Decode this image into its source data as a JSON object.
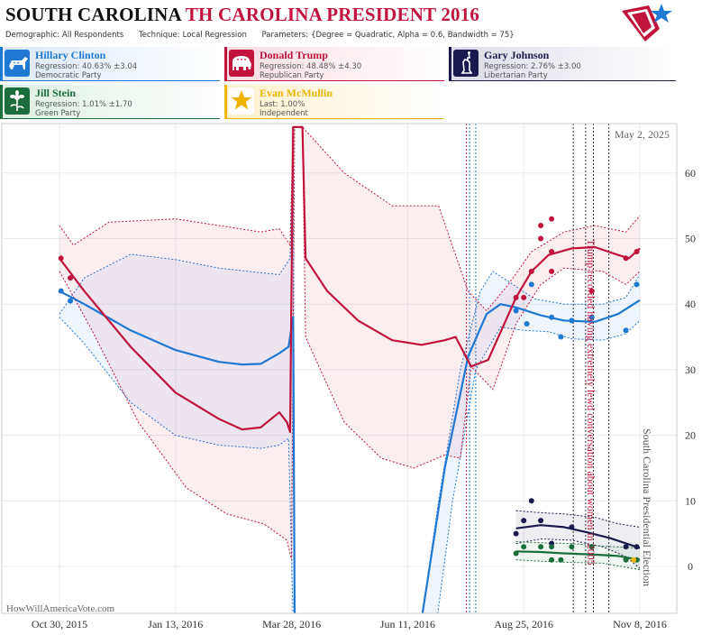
{
  "header": {
    "title_state": "SOUTH CAROLINA",
    "title_race": "TH CAROLINA PRESIDENT 2016",
    "demographic_label": "Demographic:",
    "demographic_value": "All Respondents",
    "technique_label": "Technique:",
    "technique_value": "Local Regression",
    "parameters_label": "Parameters:",
    "parameters_value": "{Degree = Quadratic, Alpha = 0.6, Bandwidth = 75}"
  },
  "candidates": [
    {
      "name": "Hillary Clinton",
      "line1": "Regression: 40.63% ±3.04",
      "line2": "Democratic Party",
      "color": "#1f78d1",
      "icon": "donkey-icon"
    },
    {
      "name": "Donald Trump",
      "line1": "Regression: 48.48% ±4.30",
      "line2": "Republican Party",
      "color": "#c0143c",
      "icon": "elephant-icon"
    },
    {
      "name": "Gary Johnson",
      "line1": "Regression: 2.76% ±3.00",
      "line2": "Libertarian Party",
      "color": "#1a1a4e",
      "icon": "statue-of-liberty-icon"
    },
    {
      "name": "Jill Stein",
      "line1": "Regression: 1.01% ±1.70",
      "line2": "Green Party",
      "color": "#1b6e3b",
      "icon": "flower-icon"
    },
    {
      "name": "Evan McMullin",
      "line1": "Last: 1.00%",
      "line2": "Independent",
      "color": "#f0b400",
      "icon": "star-icon"
    }
  ],
  "chart_data": {
    "type": "line",
    "date_label": "May 2, 2025",
    "watermark": "HowWillAmericaVote.com",
    "x_ticks": [
      "Oct 30, 2015",
      "Jan 13, 2016",
      "Mar 28, 2016",
      "Jun 11, 2016",
      "Aug 25, 2016",
      "Nov 8, 2016"
    ],
    "x_range": [
      "2015-10-30",
      "2016-11-08"
    ],
    "y_ticks": [
      0,
      10,
      20,
      30,
      40,
      50,
      60
    ],
    "ylim": [
      -8,
      67
    ],
    "grid": true,
    "annotations": [
      {
        "text": "Trump recorded having extremely lewd conversation about women in 2005",
        "date": "2016-10-07",
        "color": "#c0143c"
      },
      {
        "text": "South Carolina Presidential Election",
        "date": "2016-11-08",
        "color": "#555555"
      }
    ],
    "series": [
      {
        "name": "Hillary Clinton",
        "color": "#1f78d1",
        "fit": [
          [
            "2015-10-30",
            42
          ],
          [
            "2015-11-15",
            40
          ],
          [
            "2015-12-15",
            36
          ],
          [
            "2016-01-13",
            33
          ],
          [
            "2016-02-10",
            31.2
          ],
          [
            "2016-02-25",
            30.8
          ],
          [
            "2016-03-08",
            30.9
          ],
          [
            "2016-03-20",
            32.5
          ],
          [
            "2016-03-26",
            33.5
          ],
          [
            "2016-03-29",
            38
          ],
          [
            "2016-03-30",
            -8
          ],
          [
            "2016-06-20",
            -8
          ],
          [
            "2016-07-05",
            15
          ],
          [
            "2016-07-20",
            32
          ],
          [
            "2016-08-01",
            38.5
          ],
          [
            "2016-08-10",
            40
          ],
          [
            "2016-08-20",
            39.5
          ],
          [
            "2016-09-05",
            38.3
          ],
          [
            "2016-09-20",
            37.5
          ],
          [
            "2016-10-10",
            37.3
          ],
          [
            "2016-10-25",
            38.5
          ],
          [
            "2016-11-08",
            40.6
          ]
        ],
        "band_upper": [
          [
            "2015-10-30",
            38.5
          ],
          [
            "2015-11-15",
            44
          ],
          [
            "2015-12-15",
            47.6
          ],
          [
            "2016-01-13",
            46.8
          ],
          [
            "2016-02-10",
            45.5
          ],
          [
            "2016-03-08",
            44.8
          ],
          [
            "2016-03-20",
            44.5
          ],
          [
            "2016-03-27",
            47
          ],
          [
            "2016-03-29",
            65
          ],
          [
            "2016-03-30",
            -8
          ],
          [
            "2016-06-20",
            -8
          ],
          [
            "2016-07-01",
            10
          ],
          [
            "2016-07-15",
            30
          ],
          [
            "2016-07-28",
            42
          ],
          [
            "2016-08-05",
            45
          ],
          [
            "2016-08-15",
            43.5
          ],
          [
            "2016-09-01",
            40.8
          ],
          [
            "2016-09-20",
            40
          ],
          [
            "2016-10-15",
            40
          ],
          [
            "2016-10-30",
            41
          ],
          [
            "2016-11-08",
            44.5
          ]
        ],
        "band_lower": [
          [
            "2015-10-30",
            38
          ],
          [
            "2015-11-15",
            34
          ],
          [
            "2015-12-15",
            25
          ],
          [
            "2016-01-13",
            20
          ],
          [
            "2016-02-10",
            18.5
          ],
          [
            "2016-03-08",
            18
          ],
          [
            "2016-03-20",
            18.5
          ],
          [
            "2016-03-26",
            19.5
          ],
          [
            "2016-03-29",
            -8
          ],
          [
            "2016-06-30",
            -8
          ],
          [
            "2016-07-10",
            10
          ],
          [
            "2016-07-25",
            30
          ],
          [
            "2016-08-10",
            36.5
          ],
          [
            "2016-08-25",
            36
          ],
          [
            "2016-09-10",
            35.8
          ],
          [
            "2016-09-25",
            34.7
          ],
          [
            "2016-10-15",
            34.5
          ],
          [
            "2016-10-30",
            35.5
          ],
          [
            "2016-11-08",
            37.5
          ]
        ],
        "points": [
          [
            "2015-10-31",
            42
          ],
          [
            "2015-11-06",
            40.5
          ],
          [
            "2016-08-20",
            39
          ],
          [
            "2016-08-27",
            37
          ],
          [
            "2016-08-30",
            43
          ],
          [
            "2016-09-12",
            38
          ],
          [
            "2016-09-18",
            35
          ],
          [
            "2016-09-25",
            37.5
          ],
          [
            "2016-10-08",
            38
          ],
          [
            "2016-10-30",
            36
          ],
          [
            "2016-11-06",
            43
          ]
        ]
      },
      {
        "name": "Donald Trump",
        "color": "#c0143c",
        "fit": [
          [
            "2015-10-30",
            47
          ],
          [
            "2015-11-15",
            42
          ],
          [
            "2015-12-15",
            33.5
          ],
          [
            "2016-01-13",
            26.5
          ],
          [
            "2016-02-10",
            22.5
          ],
          [
            "2016-02-25",
            20.9
          ],
          [
            "2016-03-08",
            21.2
          ],
          [
            "2016-03-20",
            23.5
          ],
          [
            "2016-03-25",
            22
          ],
          [
            "2016-03-27",
            20.5
          ],
          [
            "2016-03-29",
            67
          ],
          [
            "2016-04-04",
            67
          ],
          [
            "2016-04-06",
            47
          ],
          [
            "2016-04-20",
            42
          ],
          [
            "2016-05-10",
            37.5
          ],
          [
            "2016-06-01",
            34.5
          ],
          [
            "2016-06-20",
            33.8
          ],
          [
            "2016-07-05",
            34.5
          ],
          [
            "2016-07-12",
            35
          ],
          [
            "2016-07-22",
            30.5
          ],
          [
            "2016-08-02",
            31.5
          ],
          [
            "2016-08-20",
            41
          ],
          [
            "2016-08-30",
            45
          ],
          [
            "2016-09-10",
            47.5
          ],
          [
            "2016-09-25",
            48.5
          ],
          [
            "2016-10-10",
            48.7
          ],
          [
            "2016-10-25",
            47.5
          ],
          [
            "2016-11-01",
            47
          ],
          [
            "2016-11-08",
            48.5
          ]
        ],
        "band_upper": [
          [
            "2015-10-30",
            52
          ],
          [
            "2015-11-08",
            49
          ],
          [
            "2015-12-01",
            52.5
          ],
          [
            "2016-01-13",
            53
          ],
          [
            "2016-02-10",
            52
          ],
          [
            "2016-03-08",
            51
          ],
          [
            "2016-03-20",
            51.5
          ],
          [
            "2016-03-27",
            49
          ],
          [
            "2016-03-29",
            67
          ],
          [
            "2016-04-04",
            67
          ],
          [
            "2016-05-01",
            60
          ],
          [
            "2016-06-01",
            55
          ],
          [
            "2016-07-01",
            55
          ],
          [
            "2016-07-20",
            42
          ],
          [
            "2016-08-01",
            39
          ],
          [
            "2016-08-15",
            43
          ],
          [
            "2016-08-30",
            48
          ],
          [
            "2016-09-20",
            51
          ],
          [
            "2016-10-10",
            52
          ],
          [
            "2016-10-30",
            51
          ],
          [
            "2016-11-08",
            53.5
          ]
        ],
        "band_lower": [
          [
            "2015-10-30",
            45
          ],
          [
            "2015-11-20",
            36
          ],
          [
            "2015-12-20",
            22
          ],
          [
            "2016-01-20",
            12
          ],
          [
            "2016-02-15",
            8
          ],
          [
            "2016-03-10",
            6.5
          ],
          [
            "2016-03-25",
            4
          ],
          [
            "2016-03-28",
            1
          ],
          [
            "2016-03-30",
            67
          ],
          [
            "2016-04-04",
            67
          ],
          [
            "2016-04-06",
            35
          ],
          [
            "2016-05-01",
            22
          ],
          [
            "2016-05-25",
            16.5
          ],
          [
            "2016-06-15",
            15
          ],
          [
            "2016-07-05",
            17
          ],
          [
            "2016-07-15",
            16.5
          ],
          [
            "2016-07-22",
            30.5
          ],
          [
            "2016-08-05",
            27
          ],
          [
            "2016-08-20",
            37
          ],
          [
            "2016-09-05",
            43
          ],
          [
            "2016-09-20",
            45.5
          ],
          [
            "2016-10-15",
            45
          ],
          [
            "2016-10-30",
            43
          ],
          [
            "2016-11-08",
            45
          ]
        ],
        "points": [
          [
            "2015-10-31",
            47
          ],
          [
            "2015-11-06",
            44
          ],
          [
            "2016-08-20",
            41
          ],
          [
            "2016-08-25",
            41
          ],
          [
            "2016-08-30",
            45
          ],
          [
            "2016-09-05",
            52
          ],
          [
            "2016-09-05",
            50
          ],
          [
            "2016-09-12",
            48
          ],
          [
            "2016-09-12",
            53
          ],
          [
            "2016-09-12",
            45
          ],
          [
            "2016-10-08",
            42
          ],
          [
            "2016-10-30",
            47
          ],
          [
            "2016-11-06",
            48
          ]
        ]
      },
      {
        "name": "Gary Johnson",
        "color": "#1a1a4e",
        "fit": [
          [
            "2016-08-20",
            5.8
          ],
          [
            "2016-09-05",
            6.3
          ],
          [
            "2016-09-20",
            6
          ],
          [
            "2016-10-05",
            5.2
          ],
          [
            "2016-10-20",
            4.3
          ],
          [
            "2016-11-08",
            2.8
          ]
        ],
        "band_upper": [
          [
            "2016-08-20",
            8.5
          ],
          [
            "2016-09-05",
            8.2
          ],
          [
            "2016-09-20",
            8
          ],
          [
            "2016-10-10",
            7.5
          ],
          [
            "2016-10-25",
            6.5
          ],
          [
            "2016-11-08",
            6
          ]
        ],
        "band_lower": [
          [
            "2016-08-20",
            3.5
          ],
          [
            "2016-09-05",
            4.2
          ],
          [
            "2016-09-25",
            4
          ],
          [
            "2016-10-15",
            3
          ],
          [
            "2016-10-30",
            1.5
          ],
          [
            "2016-11-08",
            -0.3
          ]
        ],
        "points": [
          [
            "2016-08-20",
            5
          ],
          [
            "2016-08-25",
            7
          ],
          [
            "2016-08-30",
            10
          ],
          [
            "2016-09-05",
            7
          ],
          [
            "2016-09-12",
            3.5
          ],
          [
            "2016-09-25",
            6
          ],
          [
            "2016-10-08",
            3
          ],
          [
            "2016-10-30",
            3
          ],
          [
            "2016-11-06",
            3
          ]
        ]
      },
      {
        "name": "Jill Stein",
        "color": "#1b6e3b",
        "fit": [
          [
            "2016-08-20",
            2.3
          ],
          [
            "2016-09-05",
            2.2
          ],
          [
            "2016-09-20",
            2
          ],
          [
            "2016-10-10",
            1.8
          ],
          [
            "2016-10-25",
            1.6
          ],
          [
            "2016-11-08",
            1
          ]
        ],
        "band_upper": [
          [
            "2016-08-20",
            3.8
          ],
          [
            "2016-09-05",
            3.6
          ],
          [
            "2016-09-25",
            3.5
          ],
          [
            "2016-10-15",
            3.1
          ],
          [
            "2016-11-08",
            2.8
          ]
        ],
        "band_lower": [
          [
            "2016-08-20",
            1
          ],
          [
            "2016-09-05",
            0.8
          ],
          [
            "2016-09-25",
            0.6
          ],
          [
            "2016-10-15",
            0.5
          ],
          [
            "2016-11-08",
            -0.5
          ]
        ],
        "points": [
          [
            "2016-08-20",
            2
          ],
          [
            "2016-08-25",
            3
          ],
          [
            "2016-09-05",
            3
          ],
          [
            "2016-09-12",
            1
          ],
          [
            "2016-09-12",
            3
          ],
          [
            "2016-09-18",
            1
          ],
          [
            "2016-09-25",
            3
          ],
          [
            "2016-10-08",
            3
          ],
          [
            "2016-10-30",
            1
          ],
          [
            "2016-11-06",
            1
          ]
        ]
      },
      {
        "name": "Evan McMullin",
        "color": "#f0b400",
        "fit": [],
        "band_upper": [],
        "band_lower": [],
        "points": [
          [
            "2016-11-04",
            1
          ]
        ]
      }
    ],
    "vertical_lines": [
      {
        "date": "2016-07-19",
        "color": "#c0143c"
      },
      {
        "date": "2016-07-21",
        "color": "#1f78d1"
      },
      {
        "date": "2016-07-25",
        "color": "#1f78d1"
      },
      {
        "date": "2016-09-26",
        "color": "#333333"
      },
      {
        "date": "2016-10-04",
        "color": "#333333"
      },
      {
        "date": "2016-10-09",
        "color": "#333333"
      },
      {
        "date": "2016-10-19",
        "color": "#333333"
      }
    ]
  }
}
